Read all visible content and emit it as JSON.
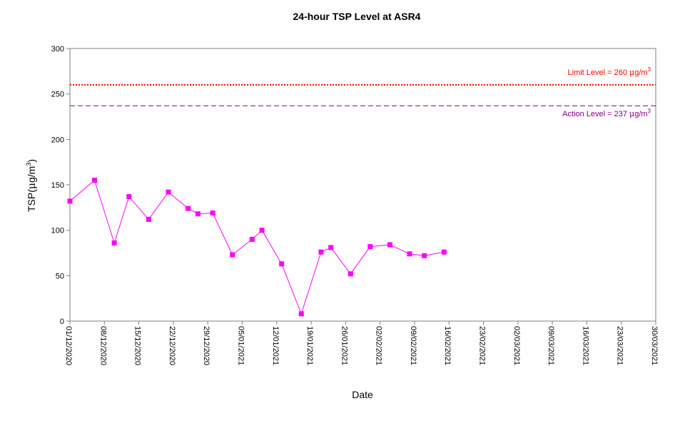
{
  "chart_data": {
    "type": "line",
    "title": "24-hour TSP Level at ASR4",
    "xlabel": "Date",
    "ylabel": "TSP(μg/m3)",
    "ylabel_base": "TSP(",
    "ylabel_mu": "μ",
    "ylabel_unit": "g/m",
    "ylabel_sup": "3",
    "ylabel_close": ")",
    "ylim": [
      0,
      300
    ],
    "yticks": [
      0,
      50,
      100,
      150,
      200,
      250,
      300
    ],
    "xlim": [
      "2020-12-01",
      "2021-03-30"
    ],
    "xtick_labels": [
      "01/12/2020",
      "08/12/2020",
      "15/12/2020",
      "22/12/2020",
      "29/12/2020",
      "05/01/2021",
      "12/01/2021",
      "19/01/2021",
      "26/01/2021",
      "02/02/2021",
      "09/02/2021",
      "16/02/2021",
      "23/02/2021",
      "02/03/2021",
      "09/03/2021",
      "16/03/2021",
      "23/03/2021",
      "30/03/2021"
    ],
    "grid": false,
    "legend": "none",
    "series": [
      {
        "color": "#ff00ff",
        "marker": "square",
        "points": [
          {
            "date": "2020-12-01",
            "value": 132
          },
          {
            "date": "2020-12-06",
            "value": 155
          },
          {
            "date": "2020-12-10",
            "value": 86
          },
          {
            "date": "2020-12-13",
            "value": 137
          },
          {
            "date": "2020-12-17",
            "value": 112
          },
          {
            "date": "2020-12-21",
            "value": 142
          },
          {
            "date": "2020-12-25",
            "value": 124
          },
          {
            "date": "2020-12-27",
            "value": 118
          },
          {
            "date": "2020-12-30",
            "value": 119
          },
          {
            "date": "2021-01-03",
            "value": 73
          },
          {
            "date": "2021-01-07",
            "value": 90
          },
          {
            "date": "2021-01-09",
            "value": 100
          },
          {
            "date": "2021-01-13",
            "value": 63
          },
          {
            "date": "2021-01-17",
            "value": 8
          },
          {
            "date": "2021-01-21",
            "value": 76
          },
          {
            "date": "2021-01-23",
            "value": 81
          },
          {
            "date": "2021-01-27",
            "value": 52
          },
          {
            "date": "2021-01-31",
            "value": 82
          },
          {
            "date": "2021-02-04",
            "value": 84
          },
          {
            "date": "2021-02-08",
            "value": 74
          },
          {
            "date": "2021-02-11",
            "value": 72
          },
          {
            "date": "2021-02-15",
            "value": 76
          }
        ]
      }
    ],
    "reference_lines": [
      {
        "name": "limit-level",
        "label": "Limit Level  = 260 μg/m3",
        "label_text": "Limit Level  = 260 ",
        "label_mu": "μ",
        "label_unit": "g/m",
        "label_sup": "3",
        "value": 260,
        "color": "#ff0000",
        "style": "dotted"
      },
      {
        "name": "action-level",
        "label": "Action Level  = 237 μg/m3",
        "label_text": "Action Level  = 237 ",
        "label_mu": "μ",
        "label_unit": "g/m",
        "label_sup": "3",
        "value": 237,
        "color": "#800080",
        "style": "dashed"
      }
    ]
  }
}
